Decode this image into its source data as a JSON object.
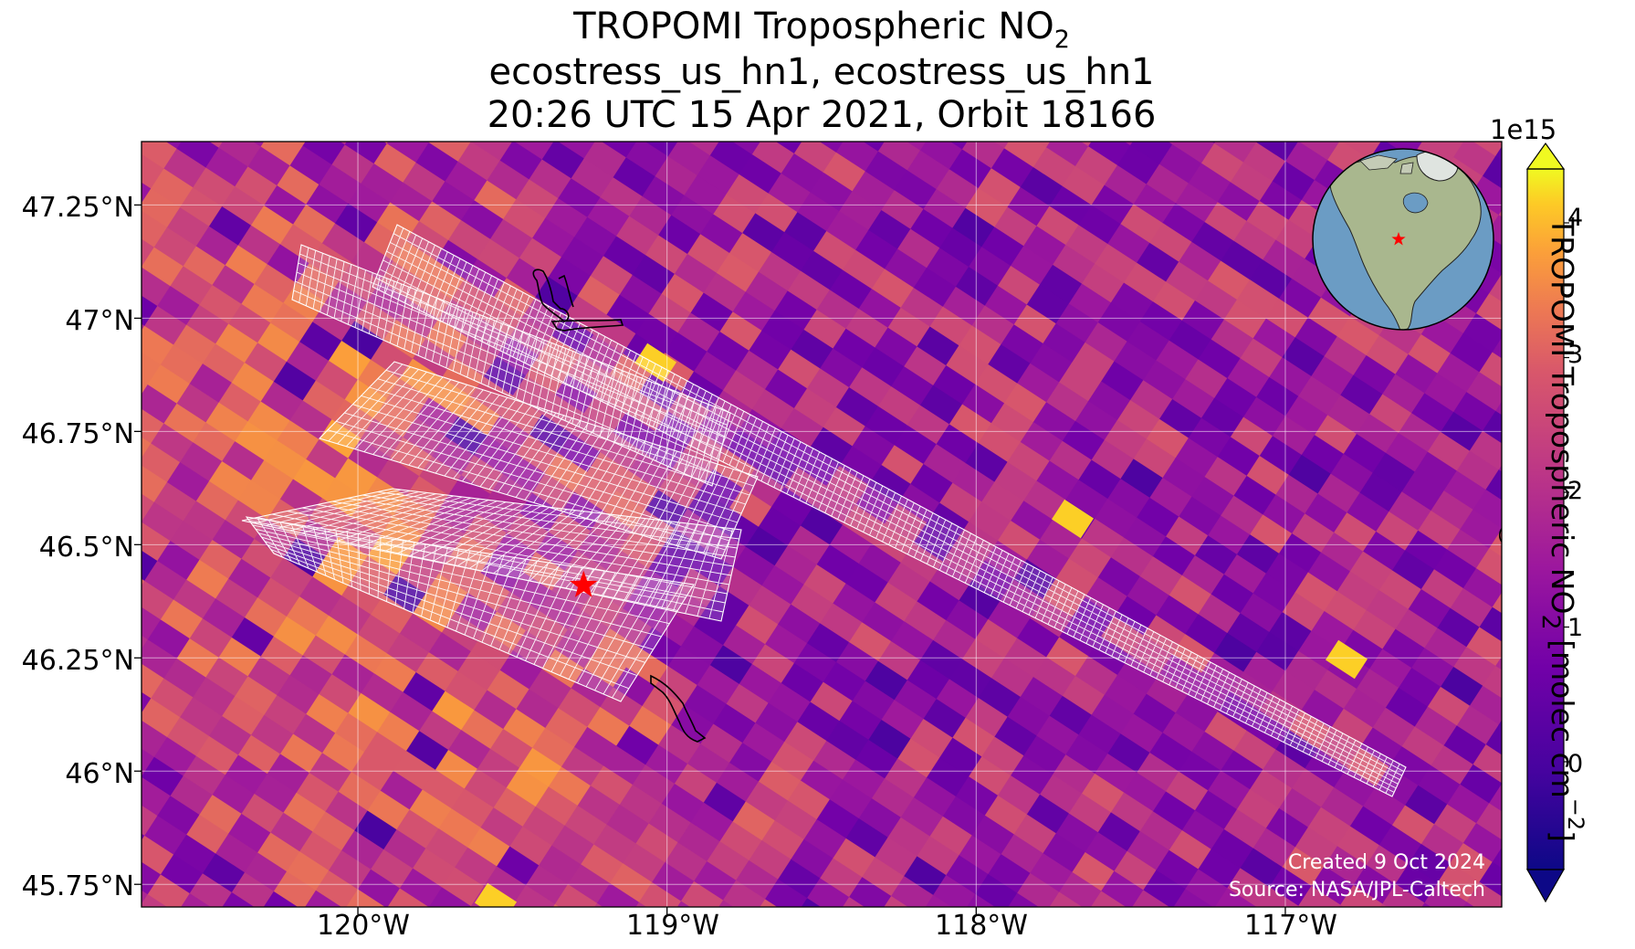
{
  "title": {
    "line1_main": "TROPOMI Tropospheric NO",
    "line1_sub": "2",
    "line2": "ecostress_us_hn1, ecostress_us_hn1",
    "line3": "20:26 UTC 15 Apr 2021, Orbit 18166"
  },
  "map": {
    "lon_range": [
      -120.7,
      -116.3
    ],
    "lat_range": [
      45.7,
      47.39
    ],
    "lat_ticks": [
      "47.25°N",
      "47°N",
      "46.75°N",
      "46.5°N",
      "46.25°N",
      "46°N",
      "45.75°N"
    ],
    "lon_ticks": [
      "120°W",
      "119°W",
      "118°W",
      "117°W"
    ],
    "site_marker": {
      "lon": -119.27,
      "lat": 46.41,
      "color": "#ff0000",
      "shape": "star"
    },
    "swath_outline_color": "#ffffff",
    "coastline_color": "#000000",
    "inset_globe": {
      "type": "orthographic",
      "center": "North America",
      "marker_color": "#ff0000"
    }
  },
  "colorbar": {
    "colormap": "plasma",
    "exponent_label": "1e15",
    "ticks": [
      "4",
      "3",
      "2",
      "1",
      "0"
    ],
    "range": [
      -0.8,
      4.4
    ],
    "extend": "both",
    "label_main": "TROPOMI Tropospheric NO",
    "label_sub": "2",
    "label_unit_pre": " [molec cm",
    "label_unit_sup": "−2",
    "label_unit_post": "]"
  },
  "credits": {
    "created": "Created 9 Oct 2024",
    "source": "Source: NASA/JPL-Caltech"
  }
}
